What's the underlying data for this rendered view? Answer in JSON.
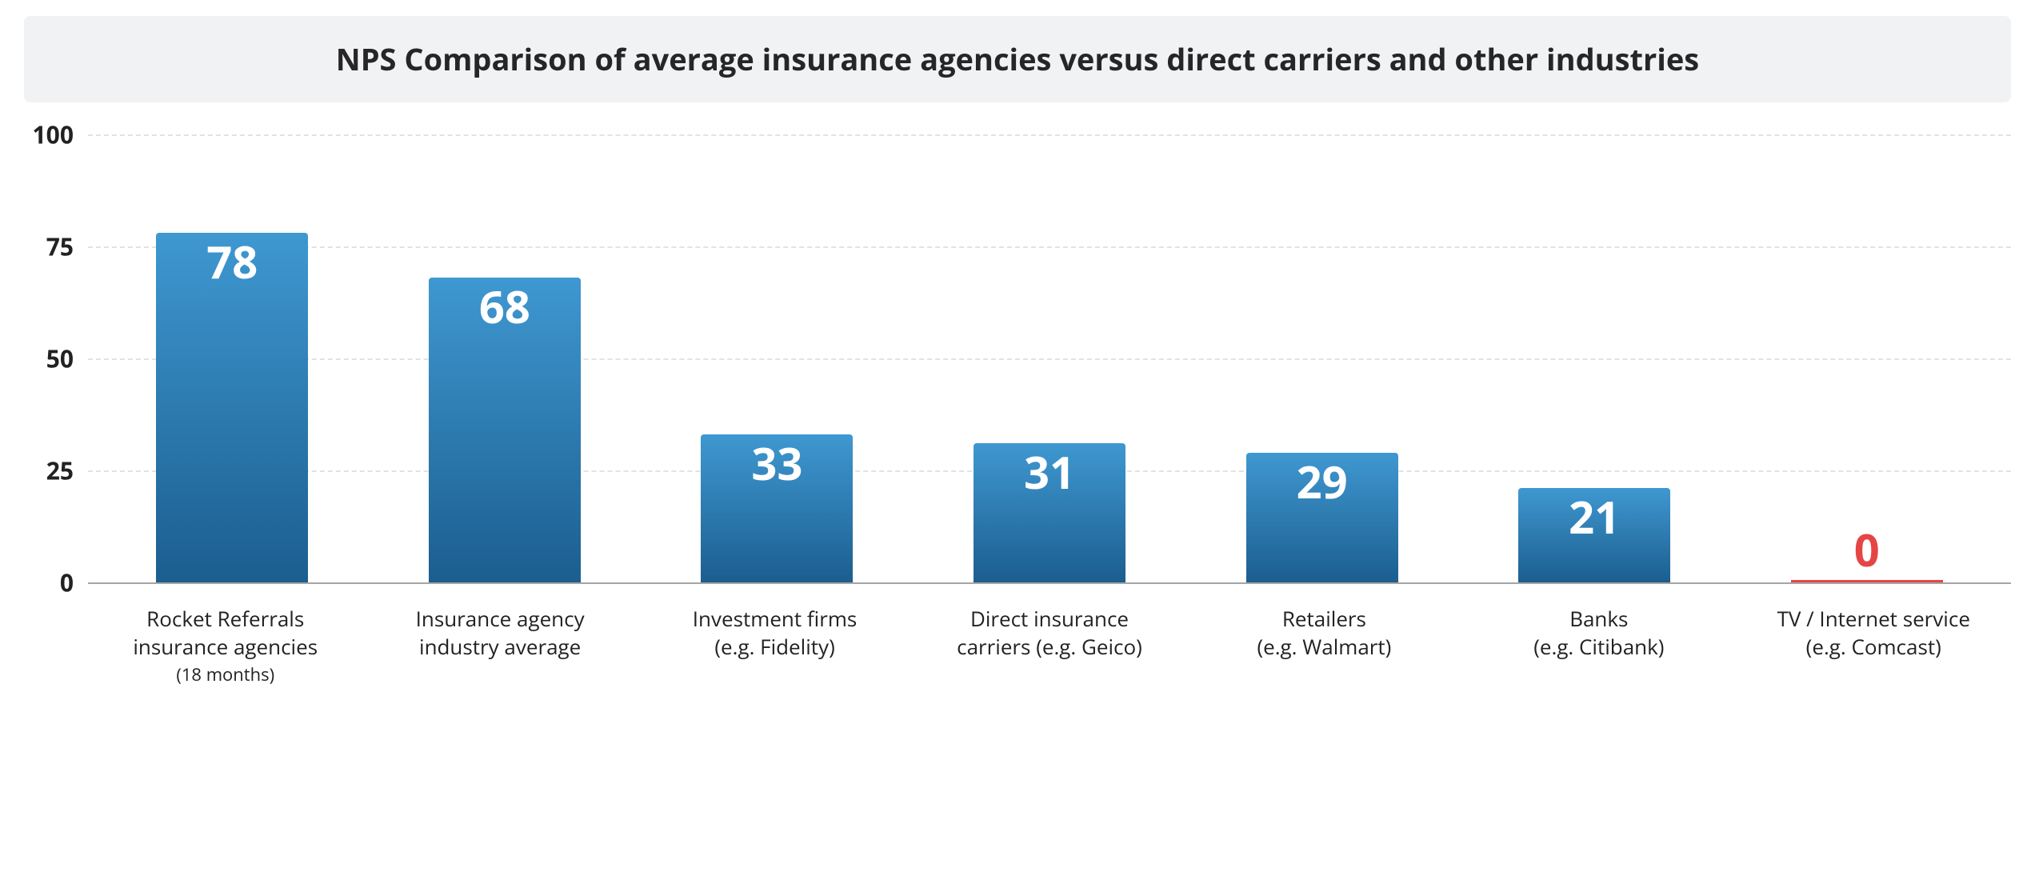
{
  "chart": {
    "type": "bar",
    "title": "NPS Comparison of average insurance agencies versus direct carriers and other industries",
    "title_fontsize": 38,
    "title_bg": "#f1f2f3",
    "title_color": "#262628",
    "background_color": "#ffffff",
    "ylim": [
      0,
      100
    ],
    "ytick_step": 25,
    "yticks": [
      0,
      25,
      50,
      75,
      100
    ],
    "ytick_fontsize": 30,
    "grid_color": "#e3e3e3",
    "baseline_color": "#a5a5a5",
    "bar_gradient_top": "#3f98d1",
    "bar_gradient_bottom": "#1b5e8f",
    "bar_width_ratio": 0.58,
    "value_fontsize": 56,
    "value_color": "#ffffff",
    "label_fontsize": 26,
    "sublabel_fontsize": 22,
    "zero_color": "#e64545",
    "categories": [
      {
        "label_line1": "Rocket Referrals",
        "label_line2": "insurance agencies",
        "sublabel": "(18 months)",
        "value": 78
      },
      {
        "label_line1": "Insurance agency",
        "label_line2": "industry average",
        "sublabel": "",
        "value": 68
      },
      {
        "label_line1": "Investment firms",
        "label_line2": "(e.g. Fidelity)",
        "sublabel": "",
        "value": 33
      },
      {
        "label_line1": "Direct insurance",
        "label_line2": "carriers (e.g. Geico)",
        "sublabel": "",
        "value": 31
      },
      {
        "label_line1": "Retailers",
        "label_line2": "(e.g. Walmart)",
        "sublabel": "",
        "value": 29
      },
      {
        "label_line1": "Banks",
        "label_line2": "(e.g. Citibank)",
        "sublabel": "",
        "value": 21
      },
      {
        "label_line1": "TV / Internet service",
        "label_line2": "(e.g. Comcast)",
        "sublabel": "",
        "value": 0
      }
    ]
  }
}
